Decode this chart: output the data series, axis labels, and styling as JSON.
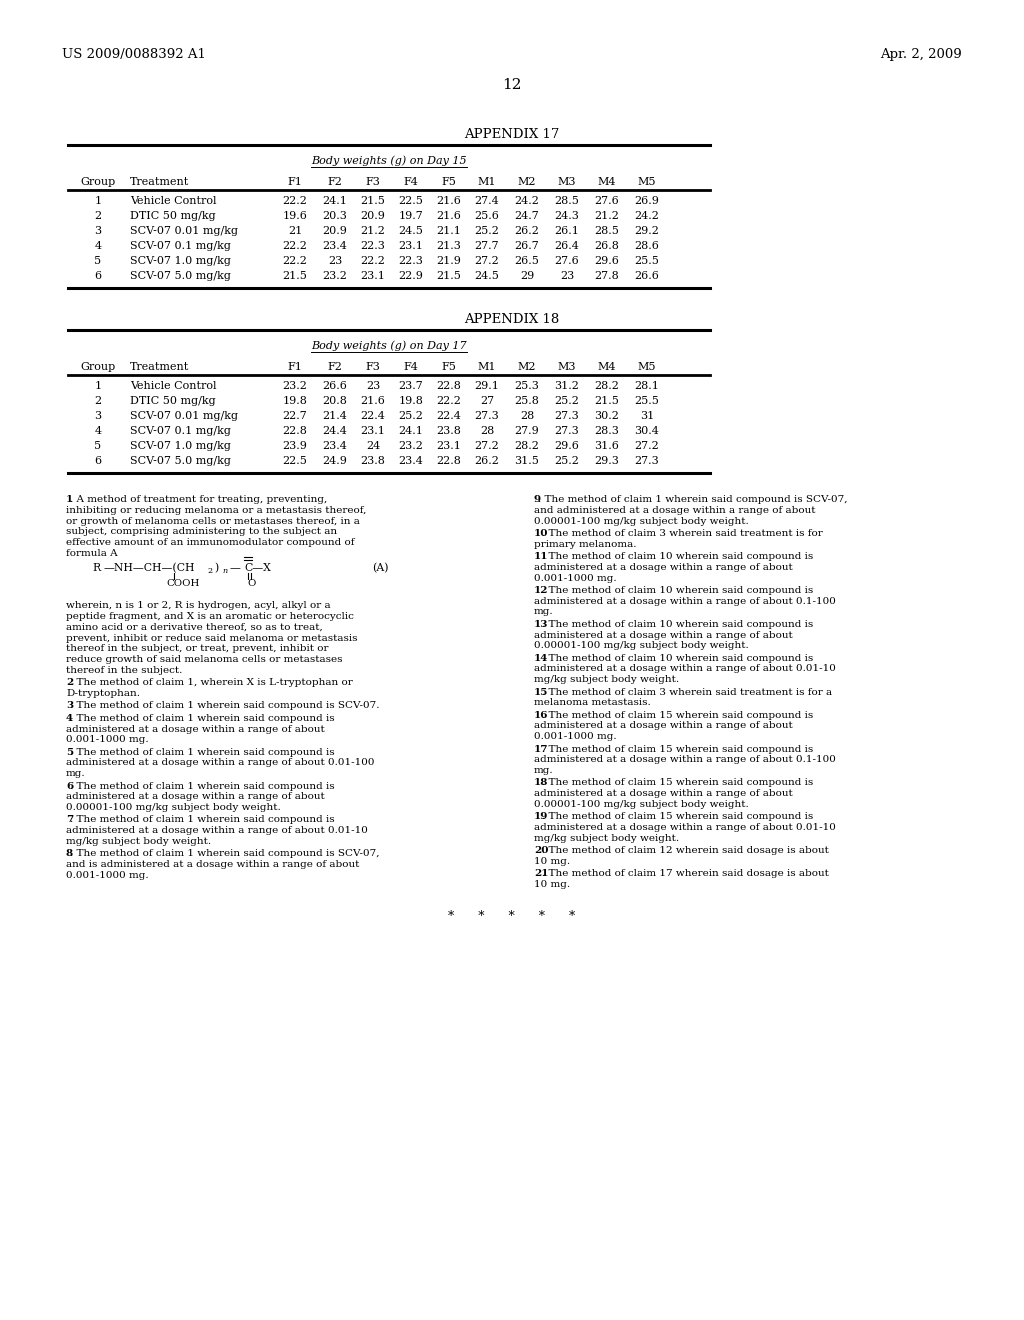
{
  "background_color": "#ffffff",
  "header_left": "US 2009/0088392 A1",
  "header_right": "Apr. 2, 2009",
  "page_number": "12",
  "appendix17": {
    "title": "APPENDIX 17",
    "subtitle": "Body weights (g) on Day 15",
    "columns": [
      "Group",
      "Treatment",
      "F1",
      "F2",
      "F3",
      "F4",
      "F5",
      "M1",
      "M2",
      "M3",
      "M4",
      "M5"
    ],
    "rows": [
      [
        "1",
        "Vehicle Control",
        "22.2",
        "24.1",
        "21.5",
        "22.5",
        "21.6",
        "27.4",
        "24.2",
        "28.5",
        "27.6",
        "26.9"
      ],
      [
        "2",
        "DTIC 50 mg/kg",
        "19.6",
        "20.3",
        "20.9",
        "19.7",
        "21.6",
        "25.6",
        "24.7",
        "24.3",
        "21.2",
        "24.2"
      ],
      [
        "3",
        "SCV-07 0.01 mg/kg",
        "21",
        "20.9",
        "21.2",
        "24.5",
        "21.1",
        "25.2",
        "26.2",
        "26.1",
        "28.5",
        "29.2"
      ],
      [
        "4",
        "SCV-07 0.1 mg/kg",
        "22.2",
        "23.4",
        "22.3",
        "23.1",
        "21.3",
        "27.7",
        "26.7",
        "26.4",
        "26.8",
        "28.6"
      ],
      [
        "5",
        "SCV-07 1.0 mg/kg",
        "22.2",
        "23",
        "22.2",
        "22.3",
        "21.9",
        "27.2",
        "26.5",
        "27.6",
        "29.6",
        "25.5"
      ],
      [
        "6",
        "SCV-07 5.0 mg/kg",
        "21.5",
        "23.2",
        "23.1",
        "22.9",
        "21.5",
        "24.5",
        "29",
        "23",
        "27.8",
        "26.6"
      ]
    ]
  },
  "appendix18": {
    "title": "APPENDIX 18",
    "subtitle": "Body weights (g) on Day 17",
    "columns": [
      "Group",
      "Treatment",
      "F1",
      "F2",
      "F3",
      "F4",
      "F5",
      "M1",
      "M2",
      "M3",
      "M4",
      "M5"
    ],
    "rows": [
      [
        "1",
        "Vehicle Control",
        "23.2",
        "26.6",
        "23",
        "23.7",
        "22.8",
        "29.1",
        "25.3",
        "31.2",
        "28.2",
        "28.1"
      ],
      [
        "2",
        "DTIC 50 mg/kg",
        "19.8",
        "20.8",
        "21.6",
        "19.8",
        "22.2",
        "27",
        "25.8",
        "25.2",
        "21.5",
        "25.5"
      ],
      [
        "3",
        "SCV-07 0.01 mg/kg",
        "22.7",
        "21.4",
        "22.4",
        "25.2",
        "22.4",
        "27.3",
        "28",
        "27.3",
        "30.2",
        "31"
      ],
      [
        "4",
        "SCV-07 0.1 mg/kg",
        "22.8",
        "24.4",
        "23.1",
        "24.1",
        "23.8",
        "28",
        "27.9",
        "27.3",
        "28.3",
        "30.4"
      ],
      [
        "5",
        "SCV-07 1.0 mg/kg",
        "23.9",
        "23.4",
        "24",
        "23.2",
        "23.1",
        "27.2",
        "28.2",
        "29.6",
        "31.6",
        "27.2"
      ],
      [
        "6",
        "SCV-07 5.0 mg/kg",
        "22.5",
        "24.9",
        "23.8",
        "23.4",
        "22.8",
        "26.2",
        "31.5",
        "25.2",
        "29.3",
        "27.3"
      ]
    ]
  }
}
